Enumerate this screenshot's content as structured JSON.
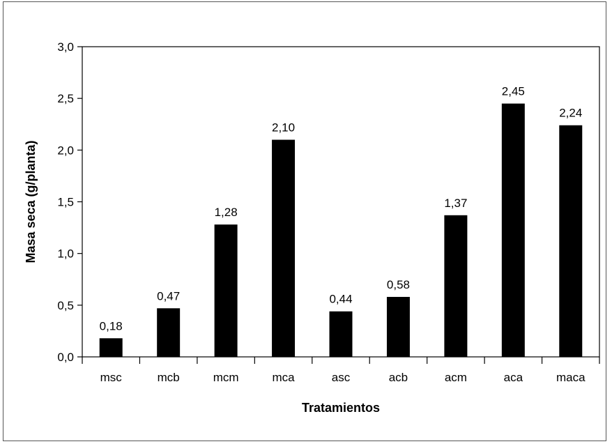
{
  "chart_data": {
    "type": "bar",
    "categories": [
      "msc",
      "mcb",
      "mcm",
      "mca",
      "asc",
      "acb",
      "acm",
      "aca",
      "maca"
    ],
    "values": [
      0.18,
      0.47,
      1.28,
      2.1,
      0.44,
      0.58,
      1.37,
      2.45,
      2.24
    ],
    "data_labels": [
      "0,18",
      "0,47",
      "1,28",
      "2,10",
      "0,44",
      "0,58",
      "1,37",
      "2,45",
      "2,24"
    ],
    "title": "",
    "xlabel": "Tratamientos",
    "ylabel": "Masa seca (g/planta)",
    "ylim": [
      0,
      3.0
    ],
    "yticks": [
      0,
      0.5,
      1.0,
      1.5,
      2.0,
      2.5,
      3.0
    ],
    "ytick_labels": [
      "0,0",
      "0,5",
      "1,0",
      "1,5",
      "2,0",
      "2,5",
      "3,0"
    ],
    "grid": false,
    "bar_color": "#000000"
  }
}
